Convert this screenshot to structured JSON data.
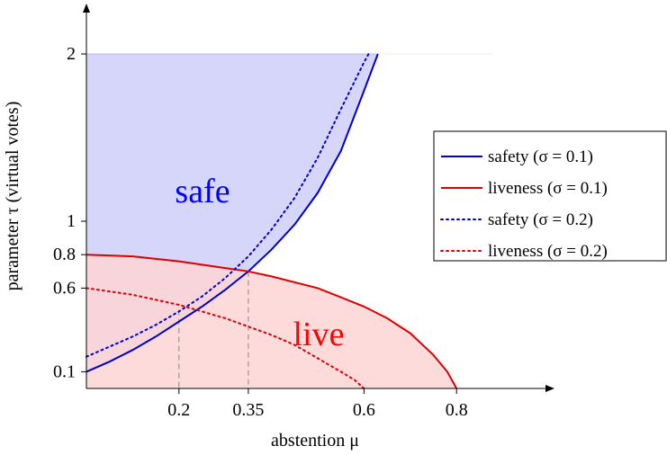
{
  "chart_data": {
    "type": "line",
    "xlabel": "abstention μ",
    "ylabel": "parameter τ (virtual votes)",
    "xlim": [
      0,
      1.0
    ],
    "ylim": [
      0,
      2.0
    ],
    "x_ticks": [
      {
        "value": 0.2,
        "label": "0.2"
      },
      {
        "value": 0.35,
        "label": "0.35"
      },
      {
        "value": 0.6,
        "label": "0.6"
      },
      {
        "value": 0.8,
        "label": "0.8"
      }
    ],
    "y_ticks": [
      {
        "value": 0.1,
        "label": "0.1"
      },
      {
        "value": 0.6,
        "label": "0.6"
      },
      {
        "value": 0.8,
        "label": "0.8"
      },
      {
        "value": 1.0,
        "label": "1"
      },
      {
        "value": 2.0,
        "label": "2"
      }
    ],
    "regions": [
      {
        "name": "safe",
        "color": "#0000ff",
        "fill": "#d4d4fa"
      },
      {
        "name": "live",
        "color": "#ff0000",
        "fill": "#fdd5d5"
      }
    ],
    "series": [
      {
        "name": "safety (σ = 0.1)",
        "color": "#0000cc",
        "style": "solid",
        "x": [
          0.0,
          0.05,
          0.1,
          0.15,
          0.2,
          0.25,
          0.3,
          0.35,
          0.4,
          0.45,
          0.5,
          0.55,
          0.6,
          0.63
        ],
        "y": [
          0.1,
          0.16,
          0.23,
          0.31,
          0.4,
          0.49,
          0.59,
          0.7,
          0.83,
          0.98,
          1.17,
          1.42,
          1.78,
          2.0
        ]
      },
      {
        "name": "liveness (σ = 0.1)",
        "color": "#dd0000",
        "style": "solid",
        "x": [
          0.0,
          0.1,
          0.2,
          0.3,
          0.35,
          0.4,
          0.5,
          0.6,
          0.65,
          0.7,
          0.75,
          0.78,
          0.8
        ],
        "y": [
          0.8,
          0.79,
          0.76,
          0.72,
          0.7,
          0.67,
          0.6,
          0.49,
          0.42,
          0.33,
          0.2,
          0.1,
          0.0
        ]
      },
      {
        "name": "safety (σ = 0.2)",
        "color": "#0000cc",
        "style": "dotted",
        "x": [
          0.0,
          0.05,
          0.1,
          0.15,
          0.2,
          0.25,
          0.3,
          0.35,
          0.4,
          0.45,
          0.5,
          0.55,
          0.6,
          0.61
        ],
        "y": [
          0.19,
          0.25,
          0.31,
          0.38,
          0.46,
          0.55,
          0.66,
          0.79,
          0.95,
          1.14,
          1.38,
          1.67,
          1.95,
          2.0
        ]
      },
      {
        "name": "liveness (σ = 0.2)",
        "color": "#dd0000",
        "style": "dotted",
        "x": [
          0.0,
          0.1,
          0.2,
          0.3,
          0.4,
          0.45,
          0.5,
          0.55,
          0.58,
          0.6
        ],
        "y": [
          0.6,
          0.56,
          0.5,
          0.42,
          0.32,
          0.26,
          0.18,
          0.1,
          0.05,
          0.0
        ]
      }
    ],
    "intersections": [
      {
        "x": 0.2,
        "y": 0.47
      },
      {
        "x": 0.35,
        "y": 0.7
      }
    ],
    "legend_position": "right"
  }
}
